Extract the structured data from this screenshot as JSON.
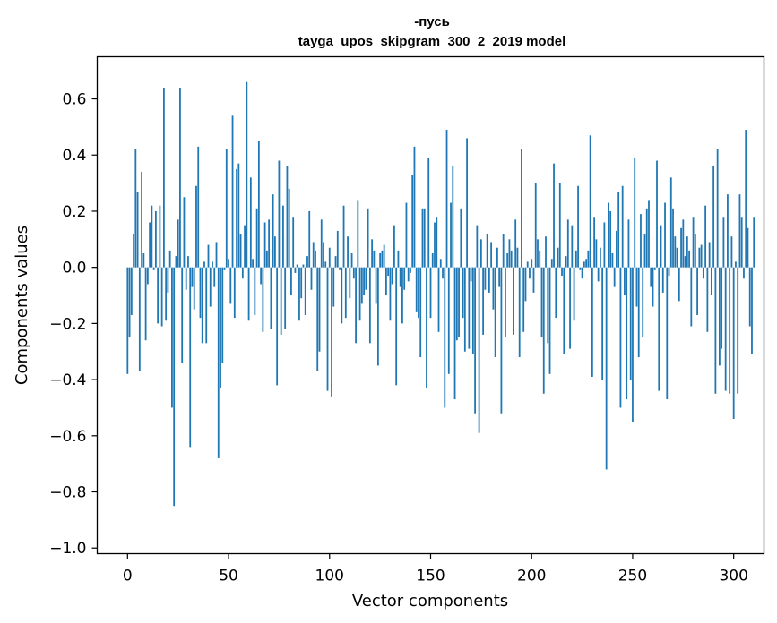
{
  "chart_data": {
    "type": "bar",
    "title_line1": "-пусь",
    "title_line2": "tayga_upos_skipgram_300_2_2019 model",
    "xlabel": "Vector components",
    "ylabel": "Components values",
    "xlim": [
      -15,
      315
    ],
    "ylim": [
      -1.02,
      0.75
    ],
    "xticks": [
      0,
      50,
      100,
      150,
      200,
      250,
      300
    ],
    "yticks": [
      -1.0,
      -0.8,
      -0.6,
      -0.4,
      -0.2,
      0.0,
      0.2,
      0.4,
      0.6
    ],
    "ytick_labels": [
      "−1.0",
      "−0.8",
      "−0.6",
      "−0.4",
      "−0.2",
      "0.0",
      "0.2",
      "0.4",
      "0.6"
    ],
    "bar_color": "#1f77b4",
    "values": [
      -0.38,
      -0.25,
      -0.17,
      0.12,
      0.42,
      0.27,
      -0.37,
      0.34,
      0.05,
      -0.26,
      -0.06,
      0.16,
      0.22,
      -0.01,
      0.2,
      -0.2,
      0.22,
      -0.21,
      0.64,
      -0.19,
      -0.09,
      0.06,
      -0.5,
      -0.85,
      0.04,
      0.17,
      0.64,
      -0.34,
      0.25,
      -0.08,
      0.04,
      -0.64,
      -0.07,
      -0.15,
      0.29,
      0.43,
      -0.18,
      -0.27,
      0.02,
      -0.27,
      0.08,
      -0.14,
      0.02,
      -0.07,
      0.09,
      -0.68,
      -0.43,
      -0.34,
      -0.01,
      0.42,
      0.03,
      -0.13,
      0.54,
      -0.18,
      0.35,
      0.37,
      0.12,
      -0.04,
      0.15,
      0.66,
      -0.19,
      0.32,
      0.03,
      -0.17,
      0.21,
      0.45,
      -0.06,
      -0.23,
      0.16,
      0.06,
      0.17,
      -0.22,
      0.26,
      0.11,
      -0.42,
      0.38,
      -0.24,
      0.22,
      -0.22,
      0.36,
      0.28,
      -0.1,
      0.18,
      -0.02,
      0.01,
      -0.19,
      -0.11,
      0.01,
      -0.17,
      0.04,
      0.2,
      -0.08,
      0.09,
      0.06,
      -0.37,
      -0.3,
      0.17,
      0.09,
      0.02,
      -0.44,
      0.07,
      -0.46,
      -0.14,
      0.04,
      0.13,
      -0.01,
      -0.2,
      0.22,
      -0.18,
      0.11,
      -0.11,
      0.05,
      -0.04,
      -0.27,
      0.24,
      -0.19,
      -0.13,
      -0.1,
      -0.08,
      0.21,
      -0.27,
      0.1,
      0.06,
      -0.13,
      -0.35,
      0.05,
      0.06,
      0.08,
      -0.1,
      -0.03,
      -0.19,
      -0.06,
      0.15,
      -0.42,
      0.06,
      -0.07,
      -0.2,
      -0.08,
      0.23,
      -0.05,
      -0.02,
      0.33,
      0.43,
      -0.16,
      -0.18,
      -0.32,
      0.21,
      0.21,
      -0.43,
      0.39,
      -0.18,
      0.05,
      0.16,
      0.18,
      -0.23,
      0.03,
      -0.04,
      -0.5,
      0.49,
      -0.38,
      0.23,
      0.36,
      -0.47,
      -0.26,
      -0.25,
      0.21,
      -0.18,
      -0.3,
      0.46,
      -0.29,
      -0.05,
      -0.31,
      -0.52,
      0.15,
      -0.59,
      0.1,
      -0.24,
      -0.08,
      0.12,
      -0.09,
      0.09,
      -0.15,
      -0.32,
      0.07,
      -0.07,
      -0.52,
      0.12,
      -0.25,
      0.05,
      0.1,
      0.06,
      -0.24,
      0.17,
      0.07,
      -0.32,
      0.42,
      -0.23,
      -0.12,
      0.02,
      -0.04,
      0.03,
      -0.09,
      0.3,
      0.1,
      0.06,
      -0.25,
      -0.45,
      0.11,
      -0.27,
      -0.38,
      0.03,
      0.37,
      -0.18,
      0.07,
      0.3,
      -0.03,
      -0.31,
      0.04,
      0.17,
      -0.29,
      0.15,
      -0.19,
      0.06,
      0.29,
      -0.01,
      -0.04,
      0.02,
      0.03,
      0.06,
      0.47,
      -0.39,
      0.18,
      0.1,
      -0.05,
      0.07,
      -0.4,
      0.16,
      -0.72,
      0.23,
      0.2,
      0.05,
      -0.07,
      0.13,
      0.27,
      -0.5,
      0.29,
      -0.1,
      -0.47,
      0.17,
      -0.4,
      -0.55,
      0.39,
      -0.14,
      -0.32,
      0.19,
      -0.25,
      0.12,
      0.21,
      0.24,
      -0.07,
      -0.14,
      -0.01,
      0.38,
      -0.44,
      0.15,
      -0.09,
      0.23,
      -0.47,
      -0.03,
      0.32,
      0.21,
      0.11,
      0.07,
      -0.12,
      0.14,
      0.17,
      0.04,
      0.11,
      0.06,
      -0.21,
      0.18,
      0.12,
      -0.17,
      0.07,
      0.08,
      -0.04,
      0.22,
      -0.23,
      0.09,
      -0.1,
      0.36,
      -0.45,
      0.42,
      -0.35,
      -0.29,
      0.18,
      -0.44,
      0.26,
      -0.45,
      0.11,
      -0.54,
      0.02,
      -0.45,
      0.26,
      0.18,
      -0.04,
      0.49,
      0.14,
      -0.21,
      -0.31,
      0.18
    ]
  }
}
